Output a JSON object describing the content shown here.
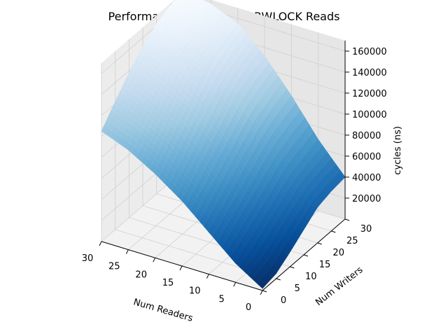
{
  "chart_data": {
    "type": "surface3d",
    "title": "Performance mountain of RWLOCK Reads",
    "xlabel": "Num Readers",
    "ylabel": "Num Writers",
    "zlabel": "cycles (ns)",
    "xlim": [
      0,
      30
    ],
    "ylim": [
      0,
      30
    ],
    "zlim": [
      0,
      170000
    ],
    "x_ticks": [
      0,
      5,
      10,
      15,
      20,
      25,
      30
    ],
    "y_ticks": [
      0,
      5,
      10,
      15,
      20,
      25,
      30
    ],
    "z_ticks": [
      20000,
      40000,
      60000,
      80000,
      100000,
      120000,
      140000,
      160000
    ],
    "x_tick_labels": [
      "0",
      "5",
      "10",
      "15",
      "20",
      "25",
      "30"
    ],
    "y_tick_labels": [
      "0",
      "5",
      "10",
      "15",
      "20",
      "25",
      "30"
    ],
    "z_tick_labels": [
      "20000",
      "40000",
      "60000",
      "80000",
      "100000",
      "120000",
      "140000",
      "160000"
    ],
    "colormap": "Blues",
    "grid_x": [
      0,
      5,
      10,
      15,
      20,
      25,
      30
    ],
    "grid_y": [
      0,
      5,
      10,
      15,
      20,
      25,
      30
    ],
    "z_values": [
      [
        2000,
        5000,
        14000,
        24000,
        34000,
        38000,
        40000
      ],
      [
        18000,
        28000,
        38000,
        48000,
        58000,
        63000,
        68000
      ],
      [
        40000,
        52000,
        64000,
        76000,
        88000,
        96000,
        102000
      ],
      [
        62000,
        76000,
        90000,
        104000,
        118000,
        126000,
        132000
      ],
      [
        80000,
        96000,
        112000,
        128000,
        142000,
        150000,
        155000
      ],
      [
        95000,
        112000,
        128000,
        144000,
        156000,
        162000,
        166000
      ],
      [
        105000,
        122000,
        138000,
        152000,
        162000,
        168000,
        170000
      ]
    ]
  }
}
